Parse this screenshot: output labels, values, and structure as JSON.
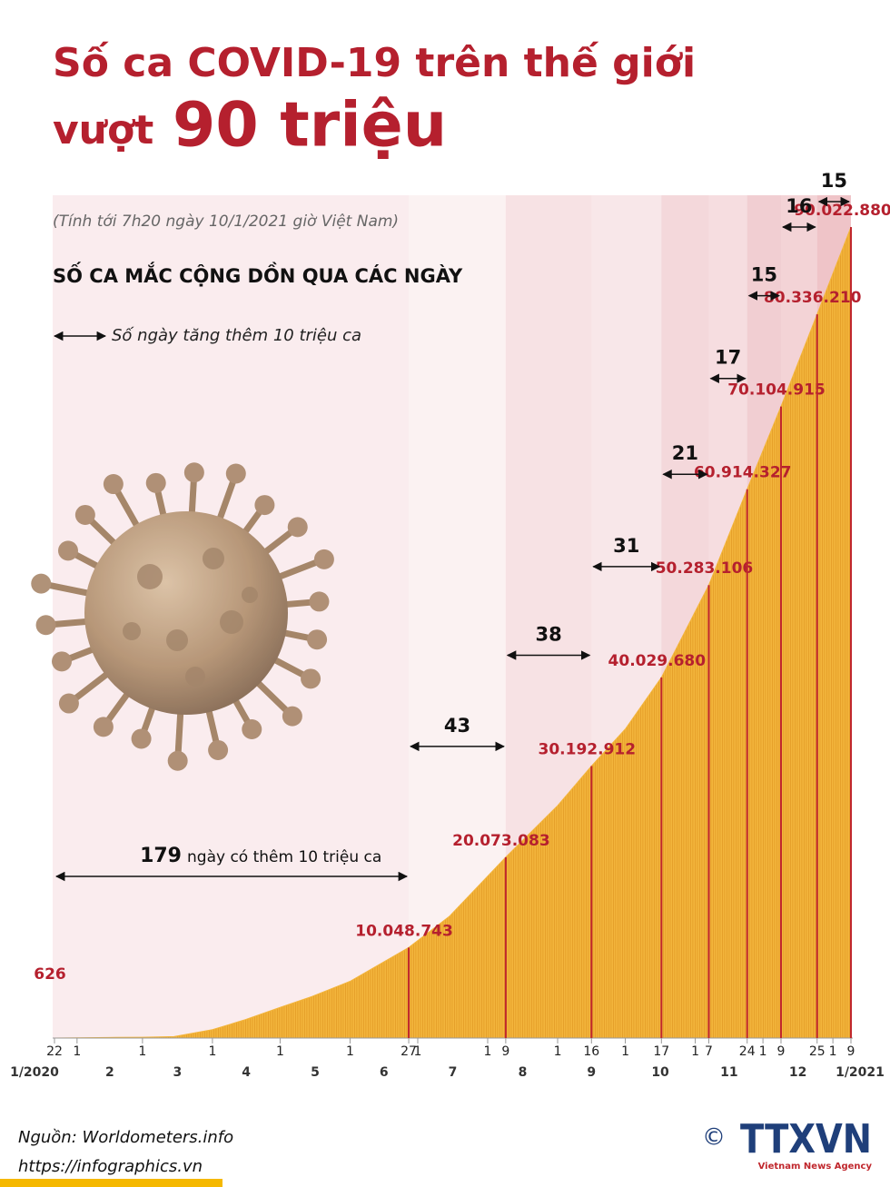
{
  "title_line1": "Số ca COVID-19 trên thế giới",
  "title_line2_prefix": "vượt",
  "title_line2_emphasis": "90 triệu",
  "note": "(Tính tới 7h20 ngày 10/1/2021 giờ Việt Nam)",
  "chart_data": {
    "type": "area",
    "title": "SỐ CA MẮC CỘNG DỒN QUA CÁC NGÀY",
    "legend_text": "Số ngày tăng thêm 10 triệu ca",
    "color": "#f3b53c",
    "milestone_color": "#c0272d",
    "x": [
      "2020-01-22",
      "2020-02-15",
      "2020-03-01",
      "2020-03-15",
      "2020-04-01",
      "2020-04-15",
      "2020-05-01",
      "2020-05-15",
      "2020-06-01",
      "2020-06-27",
      "2020-07-15",
      "2020-08-09",
      "2020-09-01",
      "2020-09-16",
      "2020-10-01",
      "2020-10-17",
      "2020-11-07",
      "2020-11-24",
      "2020-12-09",
      "2020-12-25",
      "2021-01-09"
    ],
    "values": [
      626,
      69000,
      88000,
      170000,
      930000,
      2000000,
      3400000,
      4600000,
      6300000,
      10048743,
      13500000,
      20073083,
      25800000,
      30192912,
      34300000,
      40029680,
      50283106,
      60914327,
      70104915,
      80336210,
      90022880
    ],
    "value_labels": [
      "626",
      null,
      null,
      null,
      null,
      null,
      null,
      null,
      null,
      "10.048.743",
      null,
      "20.073.083",
      null,
      "30.192.912",
      null,
      "40.029.680",
      "50.283.106",
      "60.914.327",
      "70.104.915",
      "80.336.210",
      "90.022.880"
    ],
    "intervals": [
      179,
      43,
      38,
      31,
      21,
      17,
      15,
      16,
      15
    ],
    "interval_note": "ngày có thêm 10 triệu ca",
    "xticks": [
      {
        "value": "2020-01-22",
        "label": "22"
      },
      {
        "value": "2020-02-01",
        "label": "1"
      },
      {
        "value": "2020-03-01",
        "label": "1"
      },
      {
        "value": "2020-04-01",
        "label": "1"
      },
      {
        "value": "2020-05-01",
        "label": "1"
      },
      {
        "value": "2020-06-01",
        "label": "1"
      },
      {
        "value": "2020-06-27",
        "label": "27"
      },
      {
        "value": "2020-07-01",
        "label": "1"
      },
      {
        "value": "2020-08-01",
        "label": "1"
      },
      {
        "value": "2020-08-09",
        "label": "9"
      },
      {
        "value": "2020-09-01",
        "label": "1"
      },
      {
        "value": "2020-09-16",
        "label": "16"
      },
      {
        "value": "2020-10-01",
        "label": "1"
      },
      {
        "value": "2020-10-17",
        "label": "17"
      },
      {
        "value": "2020-11-01",
        "label": "1"
      },
      {
        "value": "2020-11-07",
        "label": "7"
      },
      {
        "value": "2020-11-24",
        "label": "24"
      },
      {
        "value": "2020-12-01",
        "label": "1"
      },
      {
        "value": "2020-12-09",
        "label": "9"
      },
      {
        "value": "2020-12-25",
        "label": "25"
      },
      {
        "value": "2021-01-01",
        "label": "1"
      },
      {
        "value": "2021-01-09",
        "label": "9"
      }
    ],
    "month_labels": [
      {
        "value": "2020-01",
        "label": "1/2020"
      },
      {
        "value": "2020-02",
        "label": "2"
      },
      {
        "value": "2020-03",
        "label": "3"
      },
      {
        "value": "2020-04",
        "label": "4"
      },
      {
        "value": "2020-05",
        "label": "5"
      },
      {
        "value": "2020-06",
        "label": "6"
      },
      {
        "value": "2020-07",
        "label": "7"
      },
      {
        "value": "2020-08",
        "label": "8"
      },
      {
        "value": "2020-09",
        "label": "9"
      },
      {
        "value": "2020-10",
        "label": "10"
      },
      {
        "value": "2020-11",
        "label": "11"
      },
      {
        "value": "2020-12",
        "label": "12"
      },
      {
        "value": "2021-01",
        "label": "1/2021"
      }
    ]
  },
  "footer": {
    "source": "Nguồn: Worldometers.info",
    "url": "https://infographics.vn",
    "copyright": "©",
    "logo": "TTXVN",
    "agency": "Vietnam News Agency"
  }
}
